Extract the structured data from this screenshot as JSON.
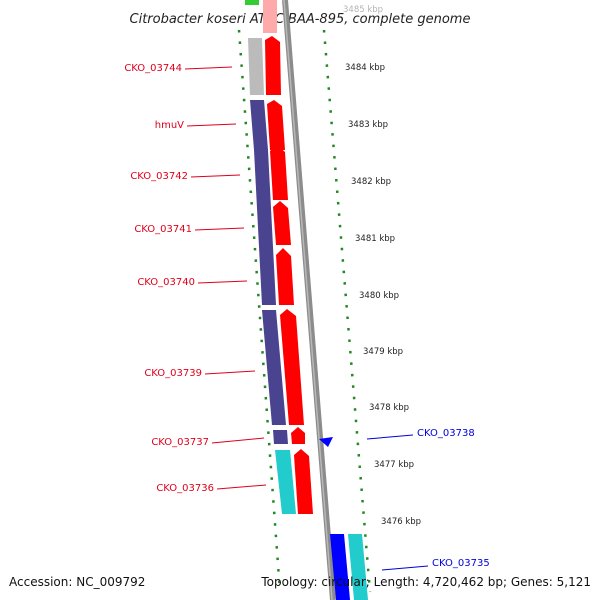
{
  "title": "Citrobacter koseri ATCC BAA-895, complete genome",
  "footer": {
    "accession": "Accession: NC_009792",
    "topology": "Topology: circular; Length: 4,720,462 bp; Genes: 5,121"
  },
  "kbp_labels": [
    {
      "label": "3485 kbp",
      "faint": true
    },
    {
      "label": "3484 kbp"
    },
    {
      "label": "3483 kbp"
    },
    {
      "label": "3482 kbp"
    },
    {
      "label": "3481 kbp"
    },
    {
      "label": "3480 kbp"
    },
    {
      "label": "3479 kbp"
    },
    {
      "label": "3478 kbp"
    },
    {
      "label": "3477 kbp"
    },
    {
      "label": "3476 kbp"
    }
  ],
  "gene_labels_left": [
    {
      "name": "CKO_03744",
      "color": "#e0001b"
    },
    {
      "name": "hmuV",
      "color": "#e0001b"
    },
    {
      "name": "CKO_03742",
      "color": "#e0001b"
    },
    {
      "name": "CKO_03741",
      "color": "#e0001b"
    },
    {
      "name": "CKO_03740",
      "color": "#e0001b"
    },
    {
      "name": "CKO_03739",
      "color": "#e0001b"
    },
    {
      "name": "CKO_03737",
      "color": "#e0001b"
    },
    {
      "name": "CKO_03736",
      "color": "#e0001b"
    }
  ],
  "gene_labels_right": [
    {
      "name": "CKO_03738",
      "color": "#0000dd"
    },
    {
      "name": "CKO_03735",
      "color": "#0000dd"
    }
  ],
  "colors": {
    "cog_navy": "#4a4490",
    "cds_red": "#ff0000",
    "cog_cyan": "#22cccc",
    "cog_gray": "#bbbbbb",
    "cog_green": "#33cc33",
    "cds_blue": "#0000ff",
    "backbone": "#8c8c8c",
    "dots": "#228822"
  }
}
